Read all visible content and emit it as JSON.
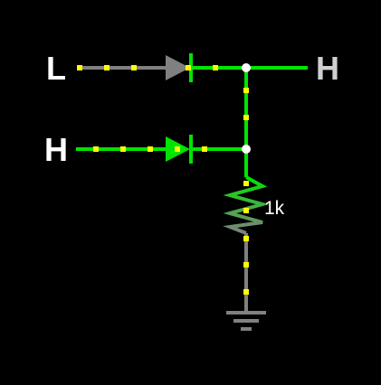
{
  "circuit": {
    "inputs": [
      {
        "label": "L"
      },
      {
        "label": "H"
      }
    ],
    "output": {
      "label": "H"
    },
    "resistor": {
      "label": "1k"
    }
  },
  "colors": {
    "background": "#000000",
    "high": "#00e400",
    "low": "#808080",
    "current_dot": "#ffff00",
    "node": "#ffffff",
    "label_high": "#ffffff",
    "label_low": "#d0d0d0"
  }
}
